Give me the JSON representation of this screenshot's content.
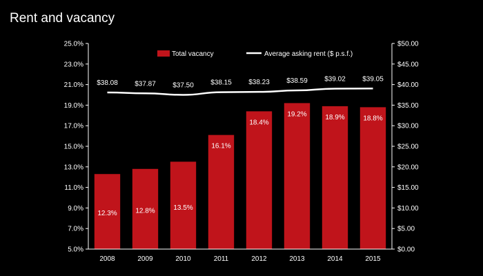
{
  "slide": {
    "title": "Rent and vacancy"
  },
  "colors": {
    "background": "#000000",
    "bar": "#c0141b",
    "line": "#ffffff",
    "axis": "#ffffff"
  },
  "chart_data": {
    "type": "bar",
    "title": "",
    "categories": [
      "2008",
      "2009",
      "2010",
      "2011",
      "2012",
      "2013",
      "2014",
      "2015"
    ],
    "series": [
      {
        "name": "Total vacancy",
        "type": "bar",
        "axis": "left",
        "values": [
          12.3,
          12.8,
          13.5,
          16.1,
          18.4,
          19.2,
          18.9,
          18.8
        ],
        "labels": [
          "12.3%",
          "12.8%",
          "13.5%",
          "16.1%",
          "18.4%",
          "19.2%",
          "18.9%",
          "18.8%"
        ]
      },
      {
        "name": "Average asking rent ($ p.s.f.)",
        "type": "line",
        "axis": "right",
        "values": [
          38.08,
          37.87,
          37.5,
          38.15,
          38.23,
          38.59,
          39.02,
          39.05
        ],
        "labels": [
          "$38.08",
          "$37.87",
          "$37.50",
          "$38.15",
          "$38.23",
          "$38.59",
          "$39.02",
          "$39.05"
        ]
      }
    ],
    "y_left": {
      "ylim": [
        5,
        25
      ],
      "ticks": [
        5,
        7,
        9,
        11,
        13,
        15,
        17,
        19,
        21,
        23,
        25
      ],
      "tick_labels": [
        "5.0%",
        "7.0%",
        "9.0%",
        "11.0%",
        "13.0%",
        "15.0%",
        "17.0%",
        "19.0%",
        "21.0%",
        "23.0%",
        "25.0%"
      ]
    },
    "y_right": {
      "ylim": [
        0,
        50
      ],
      "ticks": [
        0,
        5,
        10,
        15,
        20,
        25,
        30,
        35,
        40,
        45,
        50
      ],
      "tick_labels": [
        "$0.00",
        "$5.00",
        "$10.00",
        "$15.00",
        "$20.00",
        "$25.00",
        "$30.00",
        "$35.00",
        "$40.00",
        "$45.00",
        "$50.00"
      ]
    },
    "legend": {
      "placement": "top",
      "entries": [
        "Total vacancy",
        "Average asking rent ($ p.s.f.)"
      ]
    },
    "grid": false
  }
}
